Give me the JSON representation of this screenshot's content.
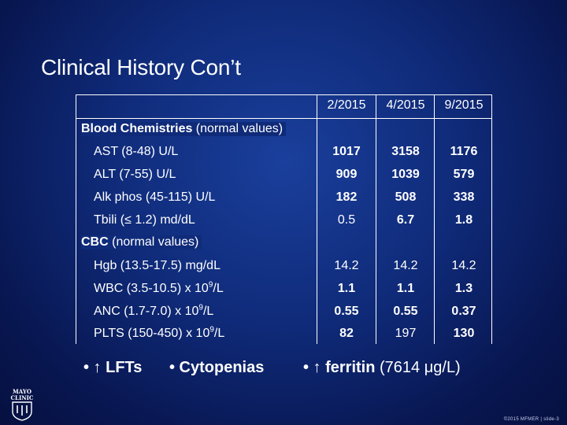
{
  "title": "Clinical History Con’t",
  "columns": [
    "2/2015",
    "4/2015",
    "9/2015"
  ],
  "sections": [
    {
      "label_bold": "Blood Chemistries",
      "label_rest": " (normal values)",
      "rows": [
        {
          "label": "AST (8-48) U/L",
          "values": [
            "1017",
            "3158",
            "1176"
          ],
          "bold": [
            true,
            true,
            true
          ]
        },
        {
          "label": "ALT (7-55) U/L",
          "values": [
            "909",
            "1039",
            "579"
          ],
          "bold": [
            true,
            true,
            true
          ]
        },
        {
          "label": "Alk phos (45-115) U/L",
          "values": [
            "182",
            "508",
            "338"
          ],
          "bold": [
            true,
            true,
            true
          ]
        },
        {
          "label": "Tbili (≤ 1.2) md/dL",
          "values": [
            "0.5",
            "6.7",
            "1.8"
          ],
          "bold": [
            false,
            true,
            true
          ]
        }
      ]
    },
    {
      "label_bold": "CBC",
      "label_rest": " (normal values)",
      "rows": [
        {
          "label": "Hgb (13.5-17.5) mg/dL",
          "values": [
            "14.2",
            "14.2",
            "14.2"
          ],
          "bold": [
            false,
            false,
            false
          ]
        },
        {
          "label_pre": "WBC (3.5-10.5) x 10",
          "sup": "9",
          "label_post": "/L",
          "values": [
            "1.1",
            "1.1",
            "1.3"
          ],
          "bold": [
            true,
            true,
            true
          ]
        },
        {
          "label_pre": "ANC (1.7-7.0) x 10",
          "sup": "9",
          "label_post": "/L",
          "values": [
            "0.55",
            "0.55",
            "0.37"
          ],
          "bold": [
            true,
            true,
            true
          ]
        },
        {
          "label_pre": "PLTS (150-450) x 10",
          "sup": "9",
          "label_post": "/L",
          "values": [
            "82",
            "197",
            "130"
          ],
          "bold": [
            true,
            false,
            true
          ]
        }
      ]
    }
  ],
  "bullets": {
    "b1": "• ↑ LFTs",
    "b2": "• Cytopenias",
    "b3_bold": "• ↑ ferritin",
    "b3_rest": " (7614 μg/L)"
  },
  "logo_text": "MAYO CLINIC",
  "footer": "©2015 MFMER | slide-3"
}
